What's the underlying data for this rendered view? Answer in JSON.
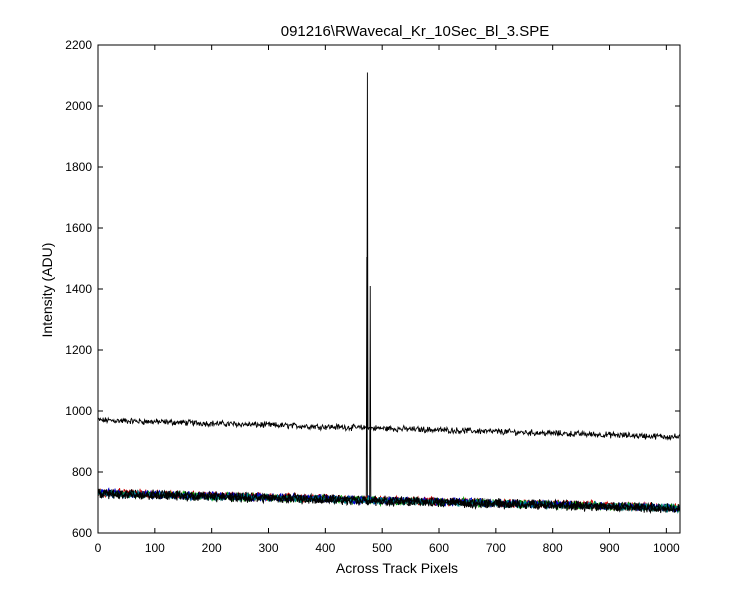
{
  "chart_data": {
    "type": "line",
    "title": "091216\\RWavecal_Kr_10Sec_Bl_3.SPE",
    "xlabel": "Across Track Pixels",
    "ylabel": "Intensity (ADU)",
    "xlim": [
      0,
      1024
    ],
    "ylim": [
      600,
      2200
    ],
    "xticks": [
      0,
      100,
      200,
      300,
      400,
      500,
      600,
      700,
      800,
      900,
      1000
    ],
    "yticks": [
      600,
      800,
      1000,
      1200,
      1400,
      1600,
      1800,
      2000,
      2200
    ],
    "grid": false,
    "legend": "none",
    "series": [
      {
        "color": "#000000",
        "baseline": {
          "x": [
            0,
            1024
          ],
          "y": [
            970,
            915
          ]
        },
        "noise_amplitude": 8,
        "peaks": [
          {
            "x": 474,
            "y": 2110
          }
        ]
      },
      {
        "color": "#000000",
        "baseline": {
          "x": [
            0,
            1024
          ],
          "y": [
            732,
            683
          ]
        },
        "noise_amplitude": 10,
        "peaks": [
          {
            "x": 479,
            "y": 1410
          },
          {
            "x": 473,
            "y": 1505
          }
        ]
      },
      {
        "color": "#cc0000",
        "baseline": {
          "x": [
            0,
            1024
          ],
          "y": [
            733,
            684
          ]
        },
        "noise_amplitude": 11,
        "peaks": []
      },
      {
        "color": "#00aa00",
        "baseline": {
          "x": [
            0,
            1024
          ],
          "y": [
            730,
            682
          ]
        },
        "noise_amplitude": 11,
        "peaks": []
      },
      {
        "color": "#0000cc",
        "baseline": {
          "x": [
            0,
            1024
          ],
          "y": [
            731,
            683
          ]
        },
        "noise_amplitude": 11,
        "peaks": []
      },
      {
        "color": "#008888",
        "baseline": {
          "x": [
            0,
            1024
          ],
          "y": [
            729,
            681
          ]
        },
        "noise_amplitude": 10,
        "peaks": []
      },
      {
        "color": "#000000",
        "baseline": {
          "x": [
            0,
            1024
          ],
          "y": [
            730,
            682
          ]
        },
        "noise_amplitude": 12,
        "peaks": []
      },
      {
        "color": "#000000",
        "baseline": {
          "x": [
            0,
            1024
          ],
          "y": [
            727,
            680
          ]
        },
        "noise_amplitude": 12,
        "peaks": []
      }
    ]
  }
}
